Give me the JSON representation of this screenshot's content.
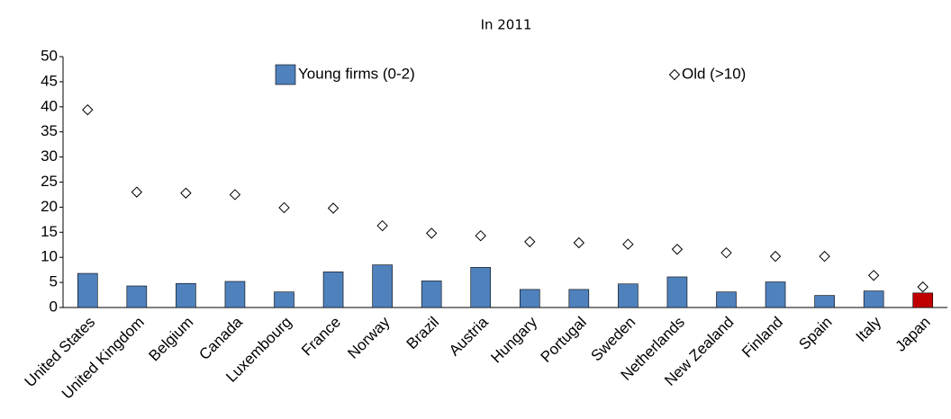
{
  "chart_data": {
    "type": "bar",
    "title": "In 2011",
    "categories": [
      "United States",
      "United Kingdom",
      "Belgium",
      "Canada",
      "Luxembourg",
      "France",
      "Norway",
      "Brazil",
      "Austria",
      "Hungary",
      "Portugal",
      "Sweden",
      "Netherlands",
      "New Zealand",
      "Finland",
      "Spain",
      "Italy",
      "Japan"
    ],
    "series": [
      {
        "name": "Young firms (0-2)",
        "type": "bar",
        "color": "#4f81bd",
        "colors": [
          "#4f81bd",
          "#4f81bd",
          "#4f81bd",
          "#4f81bd",
          "#4f81bd",
          "#4f81bd",
          "#4f81bd",
          "#4f81bd",
          "#4f81bd",
          "#4f81bd",
          "#4f81bd",
          "#4f81bd",
          "#4f81bd",
          "#4f81bd",
          "#4f81bd",
          "#4f81bd",
          "#4f81bd",
          "#c00000"
        ],
        "values": [
          6.8,
          4.3,
          4.8,
          5.2,
          3.1,
          7.1,
          8.5,
          5.3,
          8.0,
          3.6,
          3.6,
          4.7,
          6.1,
          3.1,
          5.1,
          2.4,
          3.3,
          2.9
        ]
      },
      {
        "name": "Old (>10)",
        "type": "scatter",
        "marker": "diamond",
        "color": "#000000",
        "values": [
          39.4,
          23.0,
          22.8,
          22.5,
          19.9,
          19.8,
          16.3,
          14.8,
          14.3,
          13.1,
          12.9,
          12.6,
          11.6,
          10.9,
          10.2,
          10.2,
          6.4,
          4.1
        ]
      }
    ],
    "ylim": [
      0,
      50
    ],
    "yticks": [
      0,
      5,
      10,
      15,
      20,
      25,
      30,
      35,
      40,
      45,
      50
    ],
    "grid": false
  }
}
